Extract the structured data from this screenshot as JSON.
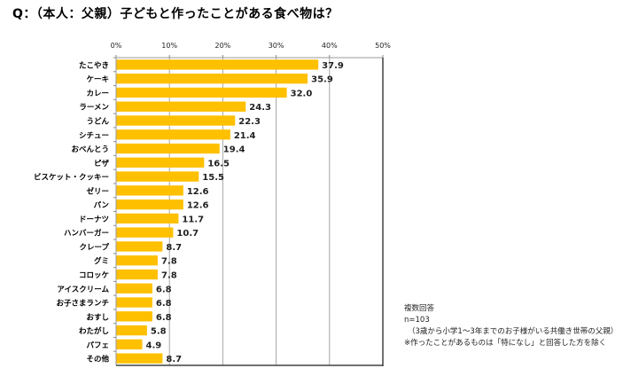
{
  "title": "Q：（本人：父親）子どもと作ったことがある食べ物は？",
  "notes": {
    "line1": "複数回答",
    "line2": "n=103",
    "line3": "（3歳から小学1～3年までのお子様がいる共働き世帯の父親）",
    "line4": "※作ったことがあるものは「特になし」と回答した方を除く"
  },
  "colors": {
    "bar": "#FFC000",
    "grid": "#a6a6a6",
    "frame": "#404040"
  },
  "chart_data": {
    "type": "bar",
    "orientation": "horizontal",
    "title": "Q：（本人：父親）子どもと作ったことがある食べ物は？",
    "xlabel": "",
    "ylabel": "",
    "xlim": [
      0,
      50
    ],
    "x_ticks": [
      0,
      10,
      20,
      30,
      40,
      50
    ],
    "x_tick_labels": [
      "0%",
      "10%",
      "20%",
      "30%",
      "40%",
      "50%"
    ],
    "x_axis_position": "top",
    "grid": true,
    "legend": "none",
    "categories": [
      "たこやき",
      "ケーキ",
      "カレー",
      "ラーメン",
      "うどん",
      "シチュー",
      "おべんとう",
      "ピザ",
      "ビスケット・クッキー",
      "ゼリー",
      "パン",
      "ドーナツ",
      "ハンバーガー",
      "クレープ",
      "グミ",
      "コロッケ",
      "アイスクリーム",
      "お子さまランチ",
      "おすし",
      "わたがし",
      "パフェ",
      "その他"
    ],
    "values": [
      37.9,
      35.9,
      32.0,
      24.3,
      22.3,
      21.4,
      19.4,
      16.5,
      15.5,
      12.6,
      12.6,
      11.7,
      10.7,
      8.7,
      7.8,
      7.8,
      6.8,
      6.8,
      6.8,
      5.8,
      4.9,
      8.7
    ],
    "value_labels": [
      "37.9",
      "35.9",
      "32.0",
      "24.3",
      "22.3",
      "21.4",
      "19.4",
      "16.5",
      "15.5",
      "12.6",
      "12.6",
      "11.7",
      "10.7",
      "8.7",
      "7.8",
      "7.8",
      "6.8",
      "6.8",
      "6.8",
      "5.8",
      "4.9",
      "8.7"
    ]
  }
}
